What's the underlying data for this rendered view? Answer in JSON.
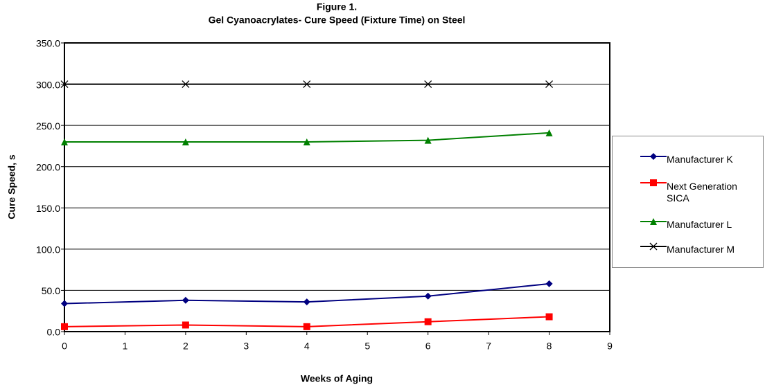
{
  "chart_data": {
    "type": "line",
    "title": "Figure 1.",
    "subtitle": "Gel Cyanoacrylates- Cure Speed (Fixture Time) on Steel",
    "x_label": "Weeks of Aging",
    "y_label": "Cure Speed, s",
    "x": [
      0,
      2,
      4,
      6,
      8
    ],
    "series": [
      {
        "name": "Manufacturer K",
        "color": "#000080",
        "marker": "diamond",
        "values": [
          34,
          38,
          36,
          43,
          58
        ]
      },
      {
        "name": "Next Generation SICA",
        "color": "#ff0000",
        "marker": "square",
        "values": [
          6,
          8,
          6,
          12,
          18
        ]
      },
      {
        "name": "Manufacturer L",
        "color": "#008000",
        "marker": "triangle",
        "values": [
          230,
          230,
          230,
          232,
          241
        ]
      },
      {
        "name": "Manufacturer M",
        "color": "#000000",
        "marker": "x",
        "values": [
          300,
          300,
          300,
          300,
          300
        ]
      }
    ],
    "xlim": [
      0,
      9
    ],
    "xticks": [
      0,
      1,
      2,
      3,
      4,
      5,
      6,
      7,
      8,
      9
    ],
    "ylim": [
      0,
      350
    ],
    "yticks": [
      {
        "value": 0,
        "label": "0.0"
      },
      {
        "value": 50,
        "label": "50.0"
      },
      {
        "value": 100,
        "label": "100.0"
      },
      {
        "value": 150,
        "label": "150.0"
      },
      {
        "value": 200,
        "label": "200.0"
      },
      {
        "value": 250,
        "label": "250.0"
      },
      {
        "value": 300,
        "label": "300.0"
      },
      {
        "value": 350,
        "label": "350.0"
      }
    ],
    "grid": true
  }
}
